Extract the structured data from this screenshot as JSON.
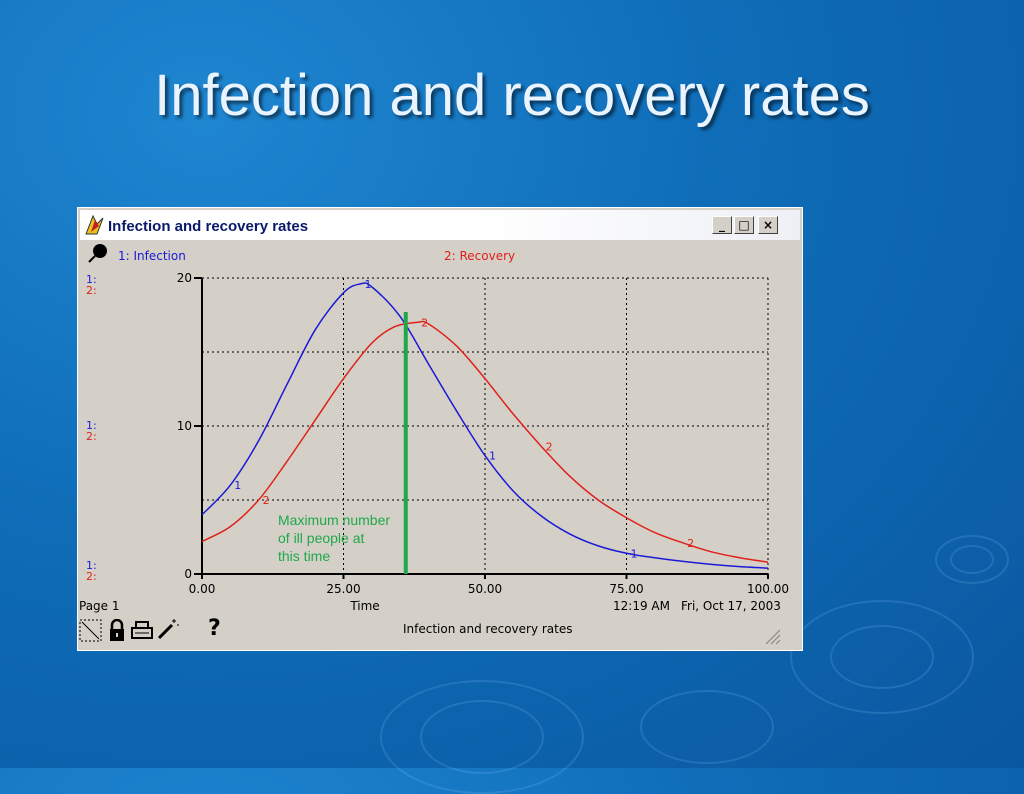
{
  "slide": {
    "title": "Infection and recovery rates"
  },
  "window": {
    "title": "Infection and recovery rates",
    "minimize_label": "_",
    "maximize_label": "□",
    "close_label": "×"
  },
  "chart_data": {
    "type": "line",
    "title": "",
    "xlabel": "Time",
    "ylabel": "",
    "xlim": [
      0,
      100
    ],
    "ylim": [
      0,
      20
    ],
    "x_ticks": [
      "0.00",
      "25.00",
      "50.00",
      "75.00",
      "100.00"
    ],
    "y_ticks": [
      "0",
      "10",
      "20"
    ],
    "grid": true,
    "series": [
      {
        "name": "1: Infection",
        "marker_label": "1",
        "color": "#1a1ad6",
        "x": [
          0,
          5,
          10,
          15,
          20,
          25,
          28,
          30,
          35,
          40,
          45,
          50,
          55,
          60,
          65,
          70,
          75,
          80,
          85,
          90,
          95,
          100
        ],
        "y": [
          4.0,
          6.0,
          9.0,
          12.8,
          16.5,
          19.0,
          19.6,
          19.4,
          17.4,
          14.2,
          11.0,
          8.0,
          5.6,
          3.9,
          2.7,
          1.9,
          1.4,
          1.1,
          0.85,
          0.65,
          0.5,
          0.4
        ]
      },
      {
        "name": "2: Recovery",
        "marker_label": "2",
        "color": "#e0201a",
        "x": [
          0,
          5,
          10,
          15,
          20,
          25,
          30,
          34,
          38,
          40,
          45,
          50,
          55,
          60,
          65,
          70,
          75,
          80,
          85,
          90,
          95,
          100
        ],
        "y": [
          2.2,
          3.2,
          5.0,
          7.6,
          10.4,
          13.2,
          15.6,
          16.7,
          17.0,
          16.9,
          15.4,
          13.2,
          10.8,
          8.6,
          6.6,
          5.0,
          3.8,
          2.8,
          2.1,
          1.5,
          1.1,
          0.8
        ]
      }
    ],
    "legend": [
      "1: Infection",
      "2: Recovery"
    ],
    "annotation": {
      "text_lines": [
        "Maximum number",
        "of ill people at",
        "this time"
      ],
      "x": 36,
      "color": "#1fa84a"
    },
    "scale_labels": [
      "1:",
      "2:"
    ]
  },
  "status": {
    "page": "Page 1",
    "axis_label": "Time",
    "time": "12:19 AM",
    "date": "Fri, Oct 17, 2003",
    "footer_title": "Infection and recovery rates"
  },
  "icons": [
    "pin-icon",
    "lock-icon",
    "print-icon",
    "wand-icon",
    "help-icon"
  ],
  "help_label": "?"
}
